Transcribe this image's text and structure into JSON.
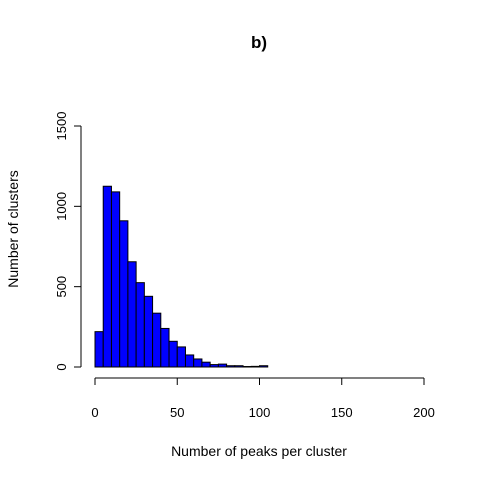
{
  "chart_data": {
    "type": "bar",
    "title": "b)",
    "xlabel": "Number of peaks per cluster",
    "ylabel": "Number of clusters",
    "xlim": [
      0,
      200
    ],
    "ylim": [
      0,
      1500
    ],
    "xticks": [
      "0",
      "50",
      "100",
      "150",
      "200"
    ],
    "yticks": [
      "0",
      "500",
      "1000",
      "1500"
    ],
    "bin_width": 5,
    "bins": [
      {
        "start": 0,
        "end": 5,
        "count": 220
      },
      {
        "start": 5,
        "end": 10,
        "count": 1125
      },
      {
        "start": 10,
        "end": 15,
        "count": 1090
      },
      {
        "start": 15,
        "end": 20,
        "count": 910
      },
      {
        "start": 20,
        "end": 25,
        "count": 655
      },
      {
        "start": 25,
        "end": 30,
        "count": 525
      },
      {
        "start": 30,
        "end": 35,
        "count": 440
      },
      {
        "start": 35,
        "end": 40,
        "count": 335
      },
      {
        "start": 40,
        "end": 45,
        "count": 240
      },
      {
        "start": 45,
        "end": 50,
        "count": 160
      },
      {
        "start": 50,
        "end": 55,
        "count": 125
      },
      {
        "start": 55,
        "end": 60,
        "count": 75
      },
      {
        "start": 60,
        "end": 65,
        "count": 50
      },
      {
        "start": 65,
        "end": 70,
        "count": 30
      },
      {
        "start": 70,
        "end": 75,
        "count": 15
      },
      {
        "start": 75,
        "end": 80,
        "count": 18
      },
      {
        "start": 80,
        "end": 85,
        "count": 8
      },
      {
        "start": 85,
        "end": 90,
        "count": 8
      },
      {
        "start": 90,
        "end": 95,
        "count": 3
      },
      {
        "start": 95,
        "end": 100,
        "count": 4
      },
      {
        "start": 100,
        "end": 105,
        "count": 8
      }
    ],
    "grid": false,
    "bar_color": "#0000ff",
    "bar_border_color": "#000000"
  }
}
